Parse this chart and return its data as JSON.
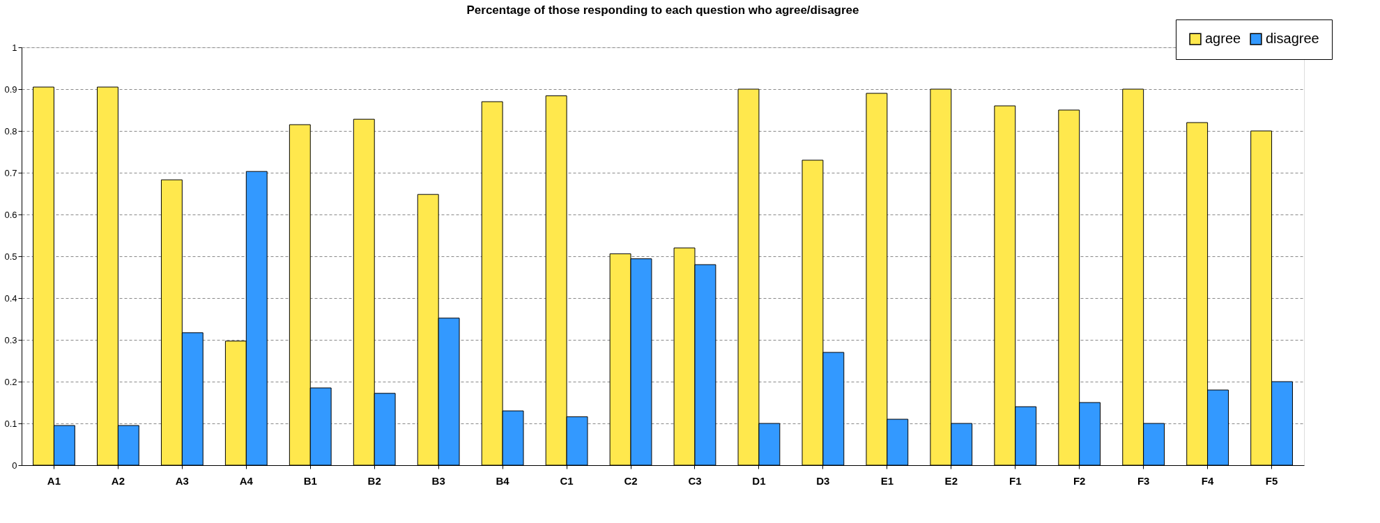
{
  "chart_data": {
    "type": "bar",
    "title": "Percentage of those responding to each question who agree/disagree",
    "categories": [
      "A1",
      "A2",
      "A3",
      "A4",
      "B1",
      "B2",
      "B3",
      "B4",
      "C1",
      "C2",
      "C3",
      "D1",
      "D3",
      "E1",
      "E2",
      "F1",
      "F2",
      "F3",
      "F4",
      "F5"
    ],
    "series": [
      {
        "name": "agree",
        "color": "#ffe84d",
        "values": [
          0.905,
          0.905,
          0.683,
          0.297,
          0.815,
          0.828,
          0.648,
          0.87,
          0.884,
          0.506,
          0.52,
          0.9,
          0.73,
          0.89,
          0.9,
          0.86,
          0.85,
          0.9,
          0.82,
          0.8
        ]
      },
      {
        "name": "disagree",
        "color": "#3399ff",
        "values": [
          0.095,
          0.095,
          0.317,
          0.703,
          0.185,
          0.172,
          0.352,
          0.13,
          0.116,
          0.494,
          0.48,
          0.1,
          0.27,
          0.11,
          0.1,
          0.14,
          0.15,
          0.1,
          0.18,
          0.2
        ]
      }
    ],
    "ylim": [
      0,
      1
    ],
    "yticks": [
      0,
      0.1,
      0.2,
      0.3,
      0.4,
      0.5,
      0.6,
      0.7,
      0.8,
      0.9,
      1
    ],
    "grid": "y",
    "legend": "top right"
  }
}
